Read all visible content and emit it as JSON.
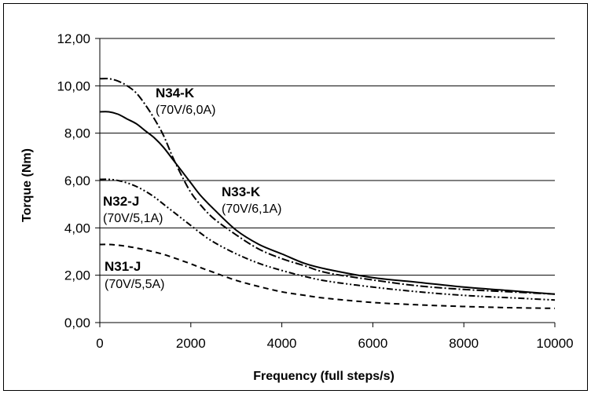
{
  "chart_data": {
    "type": "line",
    "title": "",
    "xlabel": "Frequency (full steps/s)",
    "ylabel": "Torque (Nm)",
    "xlim": [
      0,
      10000
    ],
    "ylim": [
      0,
      12
    ],
    "x_ticks": [
      "0",
      "2000",
      "4000",
      "6000",
      "8000",
      "10000"
    ],
    "y_ticks": [
      "0,00",
      "2,00",
      "4,00",
      "6,00",
      "8,00",
      "10,00",
      "12,00"
    ],
    "grid": "horizontal",
    "legend": "none",
    "series": [
      {
        "name": "N34-K",
        "note": "(70V/6,0A)",
        "style": "dash-dot",
        "x": [
          0,
          200,
          400,
          600,
          800,
          1000,
          1200,
          1400,
          1600,
          1800,
          2000,
          2200,
          2500,
          3000,
          3500,
          4000,
          4500,
          5000,
          6000,
          7000,
          8000,
          9000,
          10000
        ],
        "y": [
          10.3,
          10.3,
          10.2,
          10.0,
          9.7,
          9.2,
          8.6,
          7.9,
          7.0,
          6.2,
          5.5,
          5.0,
          4.4,
          3.7,
          3.1,
          2.7,
          2.4,
          2.1,
          1.8,
          1.55,
          1.4,
          1.3,
          1.2
        ]
      },
      {
        "name": "N33-K",
        "note": "(70V/6,1A)",
        "style": "solid",
        "x": [
          0,
          200,
          400,
          600,
          800,
          1000,
          1200,
          1400,
          1600,
          1800,
          2000,
          2200,
          2500,
          3000,
          3500,
          4000,
          4500,
          5000,
          6000,
          7000,
          8000,
          9000,
          10000
        ],
        "y": [
          8.9,
          8.9,
          8.8,
          8.6,
          8.4,
          8.1,
          7.8,
          7.4,
          6.9,
          6.4,
          5.9,
          5.4,
          4.8,
          3.9,
          3.3,
          2.9,
          2.5,
          2.25,
          1.9,
          1.7,
          1.5,
          1.35,
          1.2
        ]
      },
      {
        "name": "N32-J",
        "note": "(70V/5,1A)",
        "style": "dash-dot-dot",
        "x": [
          0,
          200,
          400,
          600,
          800,
          1000,
          1200,
          1400,
          1600,
          1800,
          2000,
          2200,
          2500,
          3000,
          3500,
          4000,
          4500,
          5000,
          6000,
          7000,
          8000,
          9000,
          10000
        ],
        "y": [
          6.05,
          6.05,
          6.0,
          5.9,
          5.75,
          5.55,
          5.3,
          5.0,
          4.7,
          4.4,
          4.1,
          3.8,
          3.4,
          2.9,
          2.5,
          2.2,
          1.95,
          1.75,
          1.5,
          1.3,
          1.15,
          1.05,
          0.95
        ]
      },
      {
        "name": "N31-J",
        "note": "(70V/5,5A)",
        "style": "dashed",
        "x": [
          0,
          200,
          400,
          600,
          800,
          1000,
          1200,
          1400,
          1600,
          1800,
          2000,
          2200,
          2500,
          3000,
          3500,
          4000,
          4500,
          5000,
          6000,
          7000,
          8000,
          9000,
          10000
        ],
        "y": [
          3.3,
          3.3,
          3.27,
          3.22,
          3.15,
          3.07,
          2.98,
          2.88,
          2.75,
          2.62,
          2.48,
          2.33,
          2.12,
          1.78,
          1.52,
          1.3,
          1.15,
          1.02,
          0.85,
          0.75,
          0.68,
          0.63,
          0.6
        ]
      }
    ],
    "annotations": [
      {
        "name": "N34-K",
        "rating": "(70V/6,0A)"
      },
      {
        "name": "N33-K",
        "rating": "(70V/6,1A)"
      },
      {
        "name": "N32-J",
        "rating": "(70V/5,1A)"
      },
      {
        "name": "N31-J",
        "rating": "(70V/5,5A)"
      }
    ]
  }
}
